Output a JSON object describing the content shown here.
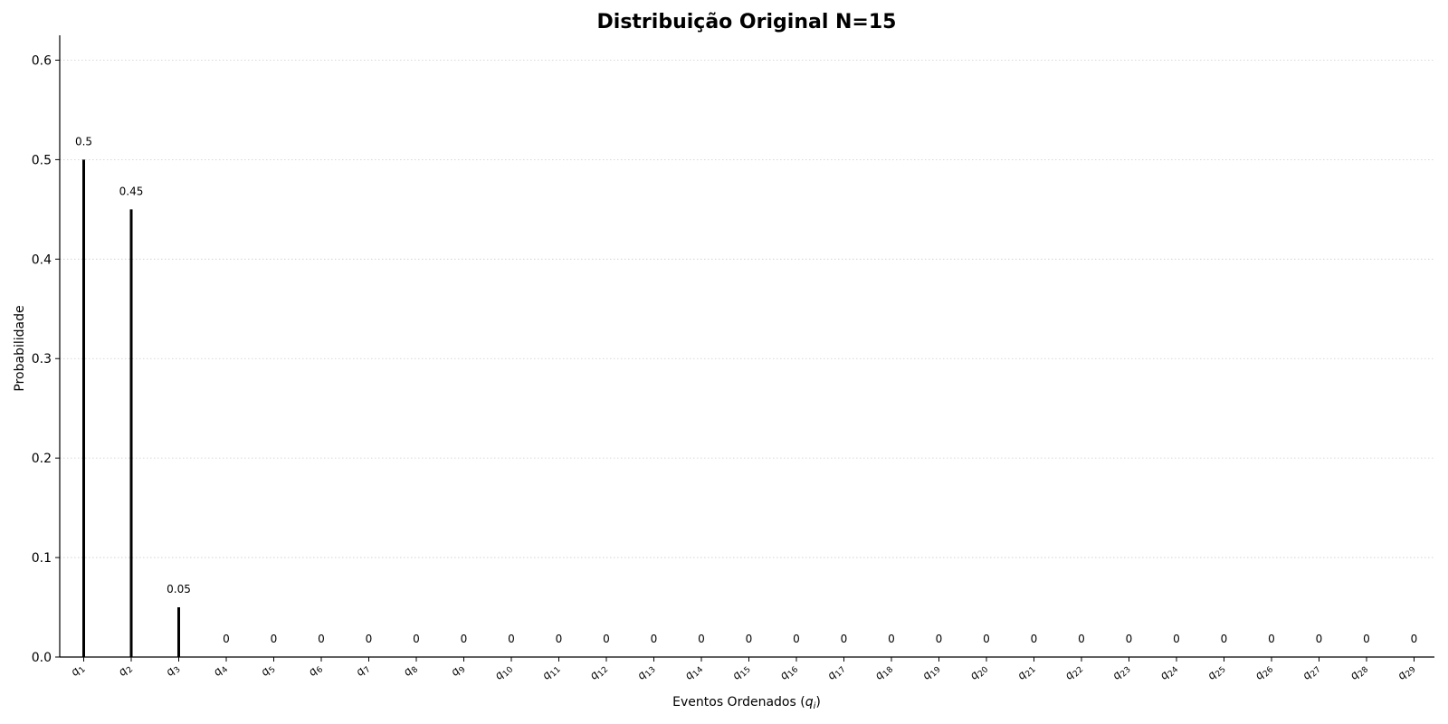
{
  "chart_data": {
    "type": "bar",
    "title": "Distribuição Original N=15",
    "xlabel": "Eventos Ordenados",
    "xlabel_var_base": "q",
    "xlabel_var_sub": "i",
    "ylabel": "Probabilidade",
    "ylim": [
      0,
      0.625
    ],
    "yticks": [
      0.0,
      0.1,
      0.2,
      0.3,
      0.4,
      0.5,
      0.6
    ],
    "ytick_labels": [
      "0.0",
      "0.1",
      "0.2",
      "0.3",
      "0.4",
      "0.5",
      "0.6"
    ],
    "grid": "y-dotted",
    "bar_color": "#000000",
    "grid_color": "#cccccc",
    "category_base": "q",
    "categories": [
      "1",
      "2",
      "3",
      "4",
      "5",
      "6",
      "7",
      "8",
      "9",
      "10",
      "11",
      "12",
      "13",
      "14",
      "15",
      "16",
      "17",
      "18",
      "19",
      "20",
      "21",
      "22",
      "23",
      "24",
      "25",
      "26",
      "27",
      "28",
      "29"
    ],
    "values": [
      0.5,
      0.45,
      0.05,
      0,
      0,
      0,
      0,
      0,
      0,
      0,
      0,
      0,
      0,
      0,
      0,
      0,
      0,
      0,
      0,
      0,
      0,
      0,
      0,
      0,
      0,
      0,
      0,
      0,
      0
    ],
    "value_labels": [
      "0.5",
      "0.45",
      "0.05",
      "0",
      "0",
      "0",
      "0",
      "0",
      "0",
      "0",
      "0",
      "0",
      "0",
      "0",
      "0",
      "0",
      "0",
      "0",
      "0",
      "0",
      "0",
      "0",
      "0",
      "0",
      "0",
      "0",
      "0",
      "0",
      "0"
    ]
  }
}
